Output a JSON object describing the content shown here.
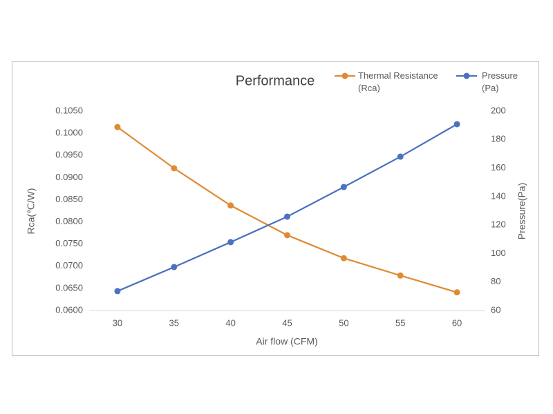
{
  "chart_data": {
    "type": "line",
    "title": "Performance",
    "x_label": "Air flow  (CFM)",
    "y_label": "Rca(℃/W)",
    "y2_label": "Pressure(Pa)",
    "categories": [
      "30",
      "35",
      "40",
      "45",
      "50",
      "55",
      "60"
    ],
    "series": [
      {
        "name": "Thermal Resistance (Rca)",
        "color": "#e08a35",
        "values": [
          0.1014,
          0.0921,
          0.0837,
          0.077,
          0.0718,
          0.0679,
          0.0641
        ]
      },
      {
        "name": "Pressure (Pa)",
        "color": "#4a72c0",
        "axis": "y2",
        "values": [
          73.6,
          90.5,
          108,
          125.9,
          146.7,
          168,
          190.8
        ]
      }
    ],
    "ylim": [
      0.06,
      0.105
    ],
    "yticks": [
      {
        "value": 0.06,
        "label": "0.0600"
      },
      {
        "value": 0.065,
        "label": "0.0650"
      },
      {
        "value": 0.07,
        "label": "0.0700"
      },
      {
        "value": 0.075,
        "label": "0.0750"
      },
      {
        "value": 0.08,
        "label": "0.0800"
      },
      {
        "value": 0.085,
        "label": "0.0850"
      },
      {
        "value": 0.09,
        "label": "0.0900"
      },
      {
        "value": 0.095,
        "label": "0.0950"
      },
      {
        "value": 0.1,
        "label": "0.1000"
      },
      {
        "value": 0.105,
        "label": "0.1050"
      }
    ],
    "y2lim": [
      60,
      200
    ],
    "y2ticks": [
      60,
      80,
      100,
      120,
      140,
      160,
      180,
      200
    ],
    "grid": false
  }
}
